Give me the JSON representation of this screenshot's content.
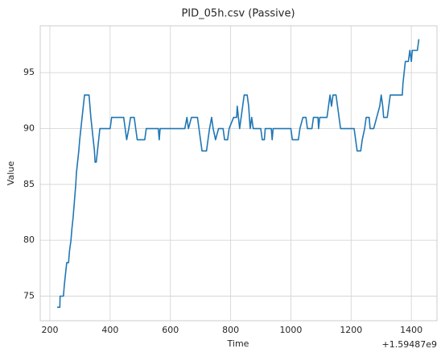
{
  "chart_data": {
    "type": "line",
    "title": "PID_05h.csv (Passive)",
    "xlabel": "Time",
    "ylabel": "Value",
    "x_offset_label": "+1.59487e9",
    "x": [
      224,
      233,
      234,
      245,
      248,
      252,
      256,
      262,
      265,
      270,
      273,
      277,
      280,
      283,
      286,
      288,
      292,
      296,
      299,
      303,
      307,
      311,
      315,
      330,
      333,
      336,
      340,
      344,
      348,
      350,
      354,
      358,
      362,
      366,
      400,
      405,
      445,
      450,
      455,
      462,
      468,
      480,
      485,
      490,
      515,
      520,
      560,
      563,
      566,
      648,
      655,
      660,
      670,
      690,
      695,
      700,
      705,
      720,
      725,
      730,
      737,
      742,
      750,
      760,
      775,
      780,
      790,
      795,
      810,
      820,
      822,
      826,
      830,
      835,
      840,
      845,
      855,
      860,
      865,
      870,
      875,
      900,
      905,
      912,
      915,
      935,
      938,
      941,
      1000,
      1005,
      1025,
      1030,
      1040,
      1050,
      1055,
      1070,
      1075,
      1090,
      1092,
      1096,
      1120,
      1125,
      1130,
      1135,
      1140,
      1150,
      1155,
      1160,
      1165,
      1210,
      1215,
      1220,
      1232,
      1237,
      1245,
      1250,
      1260,
      1263,
      1275,
      1285,
      1295,
      1300,
      1305,
      1308,
      1320,
      1325,
      1330,
      1370,
      1372,
      1380,
      1390,
      1395,
      1400,
      1403,
      1420,
      1425
    ],
    "values": [
      74,
      74,
      75,
      75,
      76,
      77,
      78,
      78,
      79,
      80,
      81,
      82,
      83,
      84,
      85,
      86,
      87,
      88,
      89,
      90,
      91,
      92,
      93,
      93,
      92,
      91,
      90,
      89,
      88,
      87,
      87,
      88,
      89,
      90,
      90,
      91,
      91,
      90,
      89,
      90,
      91,
      91,
      90,
      89,
      89,
      90,
      90,
      89,
      90,
      90,
      91,
      90,
      91,
      91,
      90,
      89,
      88,
      88,
      89,
      90,
      91,
      90,
      89,
      90,
      90,
      89,
      89,
      90,
      91,
      91,
      92,
      91,
      90,
      91,
      92,
      93,
      93,
      92,
      90,
      91,
      90,
      90,
      89,
      89,
      90,
      90,
      89,
      90,
      90,
      89,
      89,
      90,
      91,
      91,
      90,
      90,
      91,
      91,
      90,
      91,
      91,
      92,
      93,
      92,
      93,
      93,
      92,
      91,
      90,
      90,
      89,
      88,
      88,
      89,
      90,
      91,
      91,
      90,
      90,
      91,
      92,
      93,
      92,
      91,
      91,
      92,
      93,
      93,
      94,
      96,
      96,
      97,
      96,
      97,
      97,
      98
    ],
    "color": "#1f77b4",
    "xlim": [
      168,
      1485
    ],
    "xticks": [
      200,
      400,
      600,
      800,
      1000,
      1200,
      1400
    ],
    "ylim": [
      72.8,
      99.2
    ],
    "yticks": [
      75,
      80,
      85,
      90,
      95
    ],
    "grid": true
  }
}
